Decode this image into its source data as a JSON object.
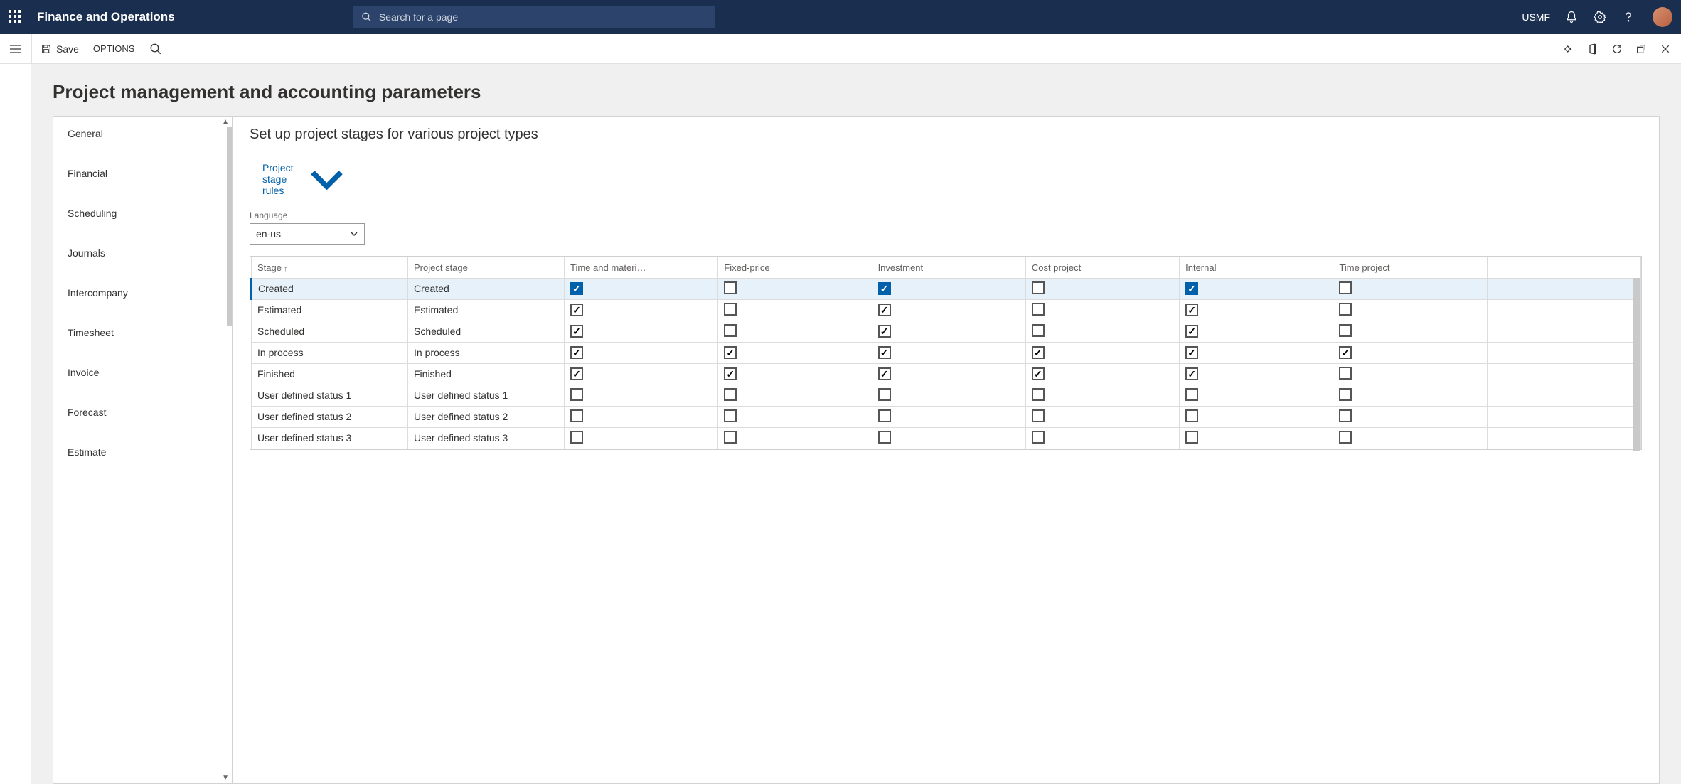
{
  "topbar": {
    "brand": "Finance and Operations",
    "search_placeholder": "Search for a page",
    "company": "USMF"
  },
  "toolbar": {
    "save_label": "Save",
    "options_label": "OPTIONS"
  },
  "page": {
    "title": "Project management and accounting parameters"
  },
  "sidenav": {
    "items": [
      "General",
      "Financial",
      "Scheduling",
      "Journals",
      "Intercompany",
      "Timesheet",
      "Invoice",
      "Forecast",
      "Estimate"
    ]
  },
  "detail": {
    "title": "Set up project stages for various project types",
    "stage_rules_label": "Project stage rules",
    "language_label": "Language",
    "language_value": "en-us"
  },
  "grid": {
    "columns": [
      {
        "key": "stage",
        "label": "Stage",
        "sorted": true
      },
      {
        "key": "project_stage",
        "label": "Project stage"
      },
      {
        "key": "time_and_materials",
        "label": "Time and materi…"
      },
      {
        "key": "fixed_price",
        "label": "Fixed-price"
      },
      {
        "key": "investment",
        "label": "Investment"
      },
      {
        "key": "cost_project",
        "label": "Cost project"
      },
      {
        "key": "internal",
        "label": "Internal"
      },
      {
        "key": "time_project",
        "label": "Time project"
      }
    ],
    "selected_index": 0,
    "rows": [
      {
        "stage": "Created",
        "project_stage": "Created",
        "time_and_materials": true,
        "fixed_price": false,
        "investment": true,
        "cost_project": false,
        "internal": true,
        "time_project": false
      },
      {
        "stage": "Estimated",
        "project_stage": "Estimated",
        "time_and_materials": true,
        "fixed_price": false,
        "investment": true,
        "cost_project": false,
        "internal": true,
        "time_project": false
      },
      {
        "stage": "Scheduled",
        "project_stage": "Scheduled",
        "time_and_materials": true,
        "fixed_price": false,
        "investment": true,
        "cost_project": false,
        "internal": true,
        "time_project": false
      },
      {
        "stage": "In process",
        "project_stage": "In process",
        "time_and_materials": true,
        "fixed_price": true,
        "investment": true,
        "cost_project": true,
        "internal": true,
        "time_project": true
      },
      {
        "stage": "Finished",
        "project_stage": "Finished",
        "time_and_materials": true,
        "fixed_price": true,
        "investment": true,
        "cost_project": true,
        "internal": true,
        "time_project": false
      },
      {
        "stage": "User defined status 1",
        "project_stage": "User defined status 1",
        "time_and_materials": false,
        "fixed_price": false,
        "investment": false,
        "cost_project": false,
        "internal": false,
        "time_project": false
      },
      {
        "stage": "User defined status 2",
        "project_stage": "User defined status 2",
        "time_and_materials": false,
        "fixed_price": false,
        "investment": false,
        "cost_project": false,
        "internal": false,
        "time_project": false
      },
      {
        "stage": "User defined status 3",
        "project_stage": "User defined status 3",
        "time_and_materials": false,
        "fixed_price": false,
        "investment": false,
        "cost_project": false,
        "internal": false,
        "time_project": false
      }
    ]
  }
}
